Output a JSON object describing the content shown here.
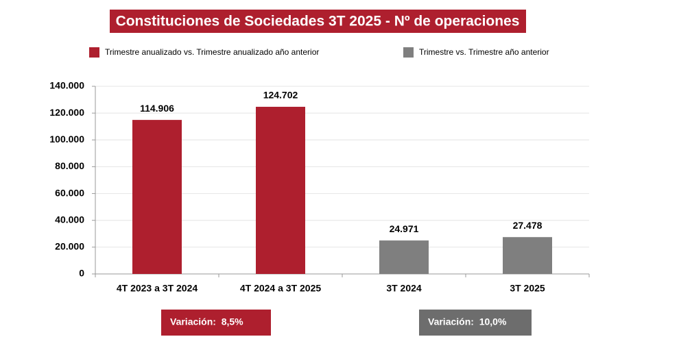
{
  "chart_data": {
    "type": "bar",
    "title": "Constituciones de Sociedades 3T 2025 - Nº de operaciones",
    "categories": [
      "4T 2023 a 3T 2024",
      "4T 2024 a 3T 2025",
      "3T 2024",
      "3T 2025"
    ],
    "series": [
      {
        "name": "Trimestre anualizado vs. Trimestre anualizado año anterior",
        "color": "#ae1f2e",
        "values": [
          114906,
          124702,
          null,
          null
        ],
        "value_labels": [
          "114.906",
          "124.702",
          null,
          null
        ]
      },
      {
        "name": "Trimestre vs. Trimestre año anterior",
        "color": "#7f7f7f",
        "values": [
          null,
          null,
          24971,
          27478
        ],
        "value_labels": [
          null,
          null,
          "24.971",
          "27.478"
        ]
      }
    ],
    "ylim": [
      0,
      140000
    ],
    "yticks": [
      0,
      {
        "value": 20000,
        "label": "20.000"
      },
      {
        "value": 40000,
        "label": "40.000"
      },
      {
        "value": 60000,
        "label": "60.000"
      },
      {
        "value": 80000,
        "label": "80.000"
      },
      {
        "value": 100000,
        "label": "100.000"
      },
      {
        "value": 120000,
        "label": "120.000"
      },
      {
        "value": 140000,
        "label": "140.000"
      }
    ],
    "grid": true,
    "legend": "top",
    "annotations": [
      {
        "text": "Variación:  8,5%",
        "color": "#ae1f2e"
      },
      {
        "text": "Variación:  10,0%",
        "color": "#6d6d6d"
      }
    ]
  }
}
